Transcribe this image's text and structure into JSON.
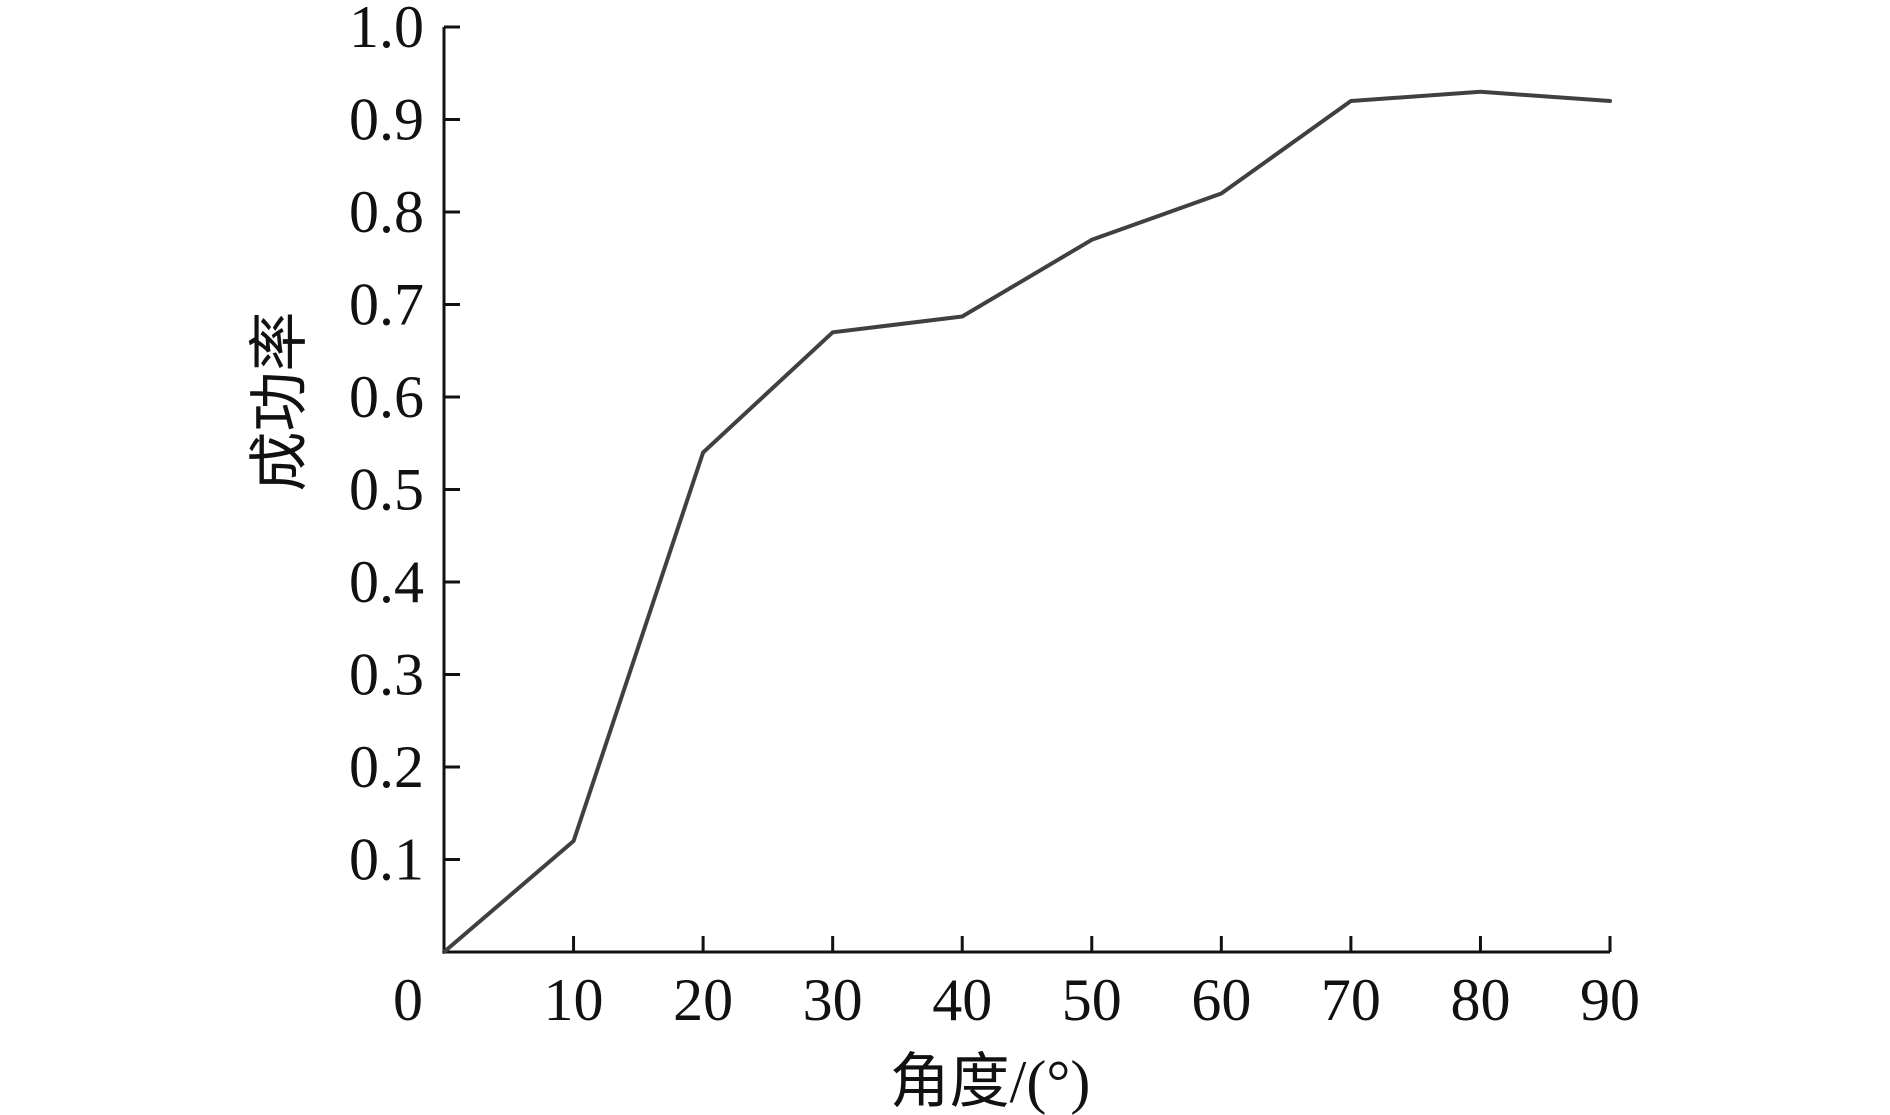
{
  "chart_data": {
    "type": "line",
    "xlabel": "角度/(°)",
    "ylabel": "成功率",
    "xlim": [
      0,
      90
    ],
    "ylim": [
      0,
      1.0
    ],
    "x_ticks": [
      0,
      10,
      20,
      30,
      40,
      50,
      60,
      70,
      80,
      90
    ],
    "x_tick_labels": [
      "0",
      "10",
      "20",
      "30",
      "40",
      "50",
      "60",
      "70",
      "80",
      "90"
    ],
    "y_ticks": [
      0.1,
      0.2,
      0.3,
      0.4,
      0.5,
      0.6,
      0.7,
      0.8,
      0.9,
      1.0
    ],
    "y_tick_labels": [
      "0.1",
      "0.2",
      "0.3",
      "0.4",
      "0.5",
      "0.6",
      "0.7",
      "0.8",
      "0.9",
      "1.0"
    ],
    "grid": false,
    "line_color": "#404040",
    "series": [
      {
        "x": [
          0,
          10,
          20,
          30,
          40,
          50,
          60,
          70,
          80,
          90
        ],
        "values": [
          0.0,
          0.12,
          0.54,
          0.67,
          0.687,
          0.77,
          0.82,
          0.92,
          0.93,
          0.92
        ]
      }
    ]
  }
}
